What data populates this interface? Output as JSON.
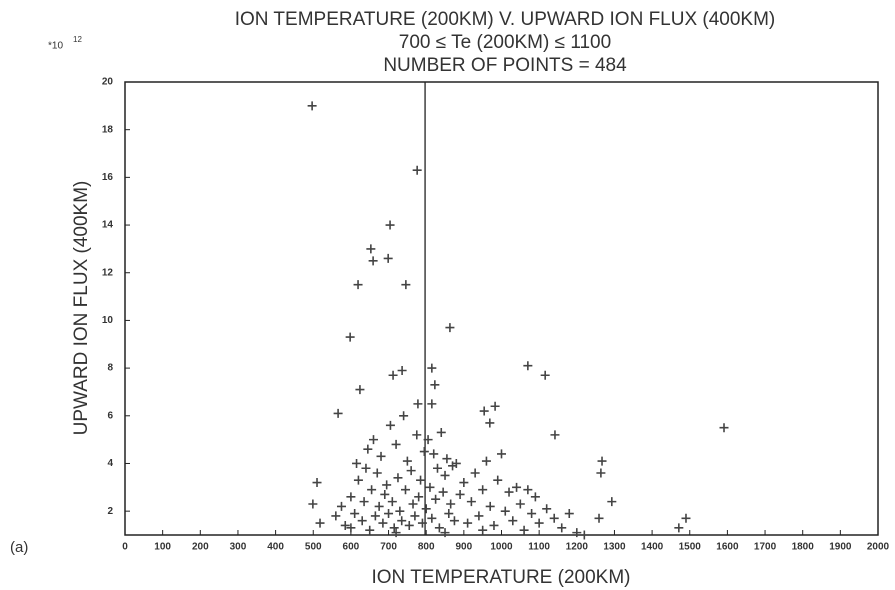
{
  "chart_data": {
    "type": "scatter",
    "title": "ION TEMPERATURE (200KM) V. UPWARD ION FLUX (400KM)",
    "subtitle": "700 ≤ Te (200KM) ≤ 1100",
    "subtitle2": "NUMBER OF POINTS =  484",
    "panel_label": "(a)",
    "y_scale_base": "*10",
    "y_scale_exponent": "12",
    "xlabel": "ION TEMPERATURE (200KM)",
    "ylabel": "UPWARD ION FLUX (400KM)",
    "color": "#444444",
    "xlim": [
      0,
      2000
    ],
    "ylim": [
      1,
      20
    ],
    "xticks": [
      0,
      100,
      200,
      300,
      400,
      500,
      600,
      700,
      800,
      900,
      1000,
      1100,
      1200,
      1300,
      1400,
      1500,
      1600,
      1700,
      1800,
      1900,
      2000
    ],
    "yticks": [
      2,
      4,
      6,
      8,
      10,
      12,
      14,
      16,
      18,
      20
    ],
    "vline_x": 797,
    "x": [
      497,
      776,
      704,
      653,
      659,
      699,
      746,
      619,
      598,
      863,
      712,
      736,
      815,
      823,
      1070,
      1116,
      624,
      566,
      778,
      815,
      954,
      983,
      969,
      1142,
      1591,
      1267,
      1264,
      1293,
      1259,
      1490,
      1471,
      510,
      499,
      518,
      560,
      575,
      585,
      600,
      610,
      615,
      620,
      630,
      635,
      640,
      645,
      650,
      655,
      660,
      665,
      670,
      675,
      680,
      685,
      690,
      695,
      700,
      705,
      710,
      715,
      720,
      725,
      730,
      735,
      740,
      745,
      750,
      755,
      760,
      765,
      770,
      775,
      780,
      785,
      790,
      795,
      800,
      805,
      810,
      815,
      820,
      825,
      830,
      835,
      840,
      845,
      850,
      855,
      860,
      865,
      870,
      875,
      880,
      890,
      900,
      910,
      920,
      930,
      940,
      950,
      960,
      970,
      980,
      990,
      1000,
      1010,
      1020,
      1030,
      1040,
      1050,
      1060,
      1070,
      1080,
      1090,
      1100,
      1120,
      1140,
      1160,
      1180,
      1200,
      1220,
      600,
      720,
      850,
      950
    ],
    "values": [
      19.0,
      16.3,
      14.0,
      13.0,
      12.5,
      12.6,
      11.5,
      11.5,
      9.3,
      9.7,
      7.7,
      7.9,
      8.0,
      7.3,
      8.1,
      7.7,
      7.1,
      6.1,
      6.5,
      6.5,
      6.2,
      6.4,
      5.7,
      5.2,
      5.5,
      4.1,
      3.6,
      2.4,
      1.7,
      1.7,
      1.3,
      3.2,
      2.3,
      1.5,
      1.8,
      2.2,
      1.4,
      2.6,
      1.9,
      4.0,
      3.3,
      1.6,
      2.4,
      3.8,
      4.6,
      1.2,
      2.9,
      5.0,
      1.8,
      3.6,
      2.2,
      4.3,
      1.5,
      2.7,
      3.1,
      1.9,
      5.6,
      2.4,
      1.3,
      4.8,
      3.4,
      2.0,
      1.6,
      6.0,
      2.9,
      4.1,
      1.4,
      3.7,
      2.3,
      1.8,
      5.2,
      2.6,
      3.3,
      1.5,
      4.5,
      2.1,
      5.0,
      3.0,
      1.7,
      4.4,
      2.5,
      3.8,
      1.3,
      5.3,
      2.8,
      3.5,
      4.2,
      1.9,
      2.3,
      3.9,
      1.6,
      4.0,
      2.7,
      3.2,
      1.5,
      2.4,
      3.6,
      1.8,
      2.9,
      4.1,
      2.2,
      1.4,
      3.3,
      4.4,
      2.0,
      2.8,
      1.6,
      3.0,
      2.3,
      1.2,
      2.9,
      1.9,
      2.6,
      1.5,
      2.1,
      1.7,
      1.3,
      1.9,
      1.1,
      1.0,
      1.3,
      1.1,
      1.1,
      1.2
    ]
  }
}
